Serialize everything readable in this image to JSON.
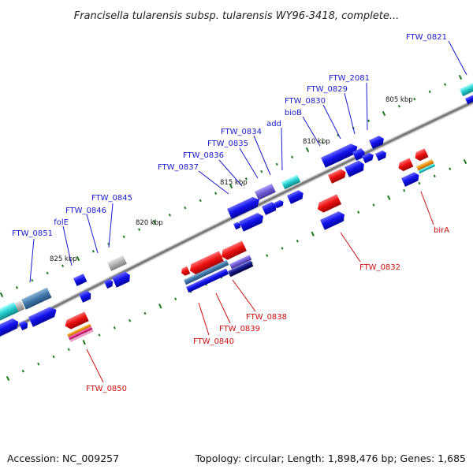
{
  "title": "Francisella tularensis subsp. tularensis WY96-3418, complete...",
  "footer": {
    "accession": "Accession: NC_009257",
    "summary": "Topology: circular; Length: 1,898,476 bp; Genes: 1,685"
  },
  "colors": {
    "label_forward": "#1a1acc",
    "label_reverse": "#cc1111",
    "backbone": "#8a8a8a",
    "tick": "#1e7a1e"
  },
  "kbp_labels": [
    {
      "text": "805 kbp"
    },
    {
      "text": "810 kbp"
    },
    {
      "text": "815 kbp"
    },
    {
      "text": "820 kbp"
    },
    {
      "text": "825 kbp"
    }
  ],
  "gene_labels": [
    {
      "text": "FTW_0821",
      "strand": "forward"
    },
    {
      "text": "FTW_2081",
      "strand": "forward"
    },
    {
      "text": "FTW_0829",
      "strand": "forward"
    },
    {
      "text": "FTW_0830",
      "strand": "forward"
    },
    {
      "text": "bioB",
      "strand": "forward"
    },
    {
      "text": "add",
      "strand": "forward"
    },
    {
      "text": "FTW_0834",
      "strand": "forward"
    },
    {
      "text": "FTW_0835",
      "strand": "forward"
    },
    {
      "text": "FTW_0836",
      "strand": "forward"
    },
    {
      "text": "FTW_0837",
      "strand": "forward"
    },
    {
      "text": "FTW_0845",
      "strand": "forward"
    },
    {
      "text": "FTW_0846",
      "strand": "forward"
    },
    {
      "text": "folE",
      "strand": "forward"
    },
    {
      "text": "FTW_0851",
      "strand": "forward"
    },
    {
      "text": "birA",
      "strand": "reverse"
    },
    {
      "text": "FTW_0832",
      "strand": "reverse"
    },
    {
      "text": "FTW_0838",
      "strand": "reverse"
    },
    {
      "text": "FTW_0839",
      "strand": "reverse"
    },
    {
      "text": "FTW_0840",
      "strand": "reverse"
    },
    {
      "text": "FTW_0850",
      "strand": "reverse"
    }
  ]
}
